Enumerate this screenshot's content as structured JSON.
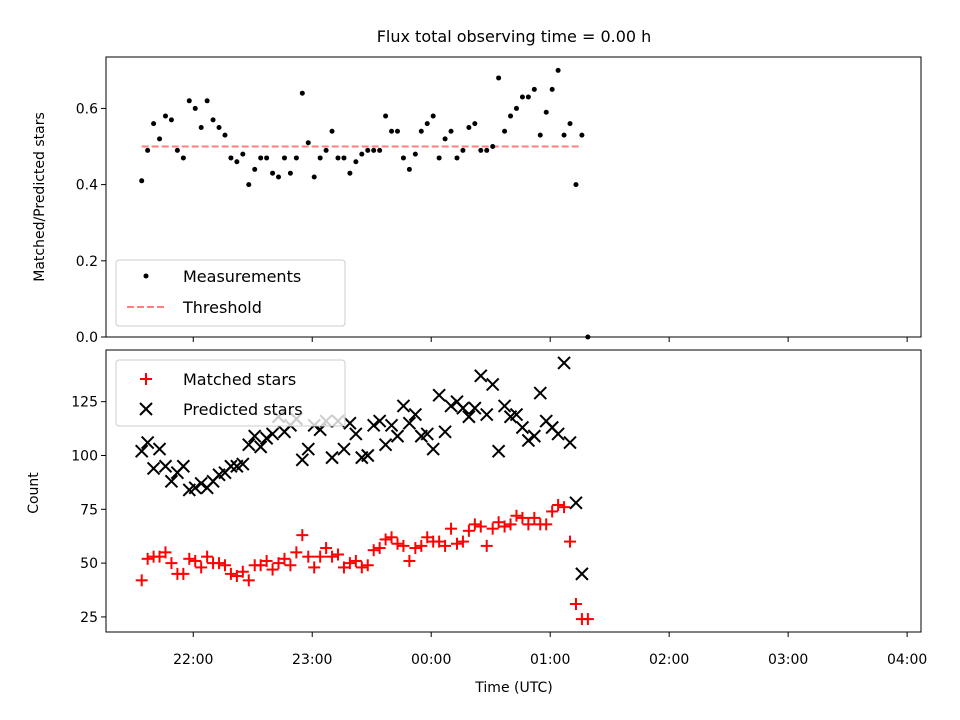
{
  "chart_data": [
    {
      "type": "scatter",
      "title": "Flux total observing time = 0.00 h",
      "xlabel": "",
      "ylabel": "Matched/Predicted stars",
      "ylim": [
        0,
        0.735
      ],
      "yticks": [
        0.0,
        0.2,
        0.4,
        0.6
      ],
      "ytick_labels": [
        "0.0",
        "0.2",
        "0.4",
        "0.6"
      ],
      "legend": "lower-left",
      "series": [
        {
          "name": "Measurements",
          "marker": "dot",
          "color": "#000000",
          "points": [
            [
              "21:34",
              0.41
            ],
            [
              "21:37",
              0.49
            ],
            [
              "21:40",
              0.56
            ],
            [
              "21:43",
              0.52
            ],
            [
              "21:46",
              0.58
            ],
            [
              "21:49",
              0.57
            ],
            [
              "21:52",
              0.49
            ],
            [
              "21:55",
              0.47
            ],
            [
              "21:58",
              0.62
            ],
            [
              "22:01",
              0.6
            ],
            [
              "22:04",
              0.55
            ],
            [
              "22:07",
              0.62
            ],
            [
              "22:10",
              0.57
            ],
            [
              "22:13",
              0.55
            ],
            [
              "22:16",
              0.53
            ],
            [
              "22:19",
              0.47
            ],
            [
              "22:22",
              0.46
            ],
            [
              "22:25",
              0.48
            ],
            [
              "22:28",
              0.4
            ],
            [
              "22:31",
              0.44
            ],
            [
              "22:34",
              0.47
            ],
            [
              "22:37",
              0.47
            ],
            [
              "22:40",
              0.43
            ],
            [
              "22:43",
              0.42
            ],
            [
              "22:46",
              0.47
            ],
            [
              "22:49",
              0.43
            ],
            [
              "22:52",
              0.47
            ],
            [
              "22:55",
              0.64
            ],
            [
              "22:58",
              0.51
            ],
            [
              "23:01",
              0.42
            ],
            [
              "23:04",
              0.47
            ],
            [
              "23:07",
              0.49
            ],
            [
              "23:10",
              0.54
            ],
            [
              "23:13",
              0.47
            ],
            [
              "23:16",
              0.47
            ],
            [
              "23:19",
              0.43
            ],
            [
              "23:22",
              0.46
            ],
            [
              "23:25",
              0.48
            ],
            [
              "23:28",
              0.49
            ],
            [
              "23:31",
              0.49
            ],
            [
              "23:34",
              0.49
            ],
            [
              "23:37",
              0.58
            ],
            [
              "23:40",
              0.54
            ],
            [
              "23:43",
              0.54
            ],
            [
              "23:46",
              0.47
            ],
            [
              "23:49",
              0.44
            ],
            [
              "23:52",
              0.48
            ],
            [
              "23:55",
              0.54
            ],
            [
              "23:58",
              0.56
            ],
            [
              "00:01",
              0.58
            ],
            [
              "00:04",
              0.47
            ],
            [
              "00:07",
              0.52
            ],
            [
              "00:10",
              0.54
            ],
            [
              "00:13",
              0.47
            ],
            [
              "00:16",
              0.49
            ],
            [
              "00:19",
              0.55
            ],
            [
              "00:22",
              0.56
            ],
            [
              "00:25",
              0.49
            ],
            [
              "00:28",
              0.49
            ],
            [
              "00:31",
              0.5
            ],
            [
              "00:34",
              0.68
            ],
            [
              "00:37",
              0.54
            ],
            [
              "00:40",
              0.58
            ],
            [
              "00:43",
              0.6
            ],
            [
              "00:46",
              0.63
            ],
            [
              "00:49",
              0.63
            ],
            [
              "00:52",
              0.65
            ],
            [
              "00:55",
              0.53
            ],
            [
              "00:58",
              0.59
            ],
            [
              "01:01",
              0.65
            ],
            [
              "01:04",
              0.7
            ],
            [
              "01:07",
              0.53
            ],
            [
              "01:10",
              0.56
            ],
            [
              "01:13",
              0.4
            ],
            [
              "01:16",
              0.53
            ],
            [
              "01:19",
              0.0
            ]
          ]
        },
        {
          "name": "Threshold",
          "marker": "dashed-line",
          "color": "#ff7f7f",
          "points": [
            [
              "21:34",
              0.5
            ],
            [
              "01:16",
              0.5
            ]
          ]
        }
      ]
    },
    {
      "type": "scatter",
      "title": "",
      "xlabel": "Time (UTC)",
      "ylabel": "Count",
      "ylim": [
        18,
        149
      ],
      "yticks": [
        25,
        50,
        75,
        100,
        125
      ],
      "ytick_labels": [
        "25",
        "50",
        "75",
        "100",
        "125"
      ],
      "xticks": [
        "22:00",
        "23:00",
        "00:00",
        "01:00",
        "02:00",
        "03:00",
        "04:00"
      ],
      "xlim": [
        "21:16",
        "04:07"
      ],
      "legend": "upper-left",
      "series": [
        {
          "name": "Matched stars",
          "marker": "plus",
          "color": "#ff0000",
          "points": [
            [
              "21:34",
              42
            ],
            [
              "21:37",
              52
            ],
            [
              "21:40",
              53
            ],
            [
              "21:43",
              53
            ],
            [
              "21:46",
              55
            ],
            [
              "21:49",
              50
            ],
            [
              "21:52",
              45
            ],
            [
              "21:55",
              45
            ],
            [
              "21:58",
              52
            ],
            [
              "22:01",
              51
            ],
            [
              "22:04",
              48
            ],
            [
              "22:07",
              53
            ],
            [
              "22:10",
              50
            ],
            [
              "22:13",
              50
            ],
            [
              "22:16",
              49
            ],
            [
              "22:19",
              45
            ],
            [
              "22:22",
              44
            ],
            [
              "22:25",
              46
            ],
            [
              "22:28",
              42
            ],
            [
              "22:31",
              49
            ],
            [
              "22:34",
              49
            ],
            [
              "22:37",
              51
            ],
            [
              "22:40",
              47
            ],
            [
              "22:43",
              50
            ],
            [
              "22:46",
              52
            ],
            [
              "22:49",
              49
            ],
            [
              "22:52",
              55
            ],
            [
              "22:55",
              63
            ],
            [
              "22:58",
              53
            ],
            [
              "23:01",
              48
            ],
            [
              "23:04",
              53
            ],
            [
              "23:07",
              57
            ],
            [
              "23:10",
              53
            ],
            [
              "23:13",
              54
            ],
            [
              "23:16",
              48
            ],
            [
              "23:19",
              50
            ],
            [
              "23:22",
              51
            ],
            [
              "23:25",
              48
            ],
            [
              "23:28",
              49
            ],
            [
              "23:31",
              56
            ],
            [
              "23:34",
              57
            ],
            [
              "23:37",
              61
            ],
            [
              "23:40",
              62
            ],
            [
              "23:43",
              59
            ],
            [
              "23:46",
              58
            ],
            [
              "23:49",
              51
            ],
            [
              "23:52",
              57
            ],
            [
              "23:55",
              58
            ],
            [
              "23:58",
              62
            ],
            [
              "00:01",
              60
            ],
            [
              "00:04",
              60
            ],
            [
              "00:07",
              58
            ],
            [
              "00:10",
              66
            ],
            [
              "00:13",
              59
            ],
            [
              "00:16",
              60
            ],
            [
              "00:19",
              65
            ],
            [
              "00:22",
              68
            ],
            [
              "00:25",
              67
            ],
            [
              "00:28",
              58
            ],
            [
              "00:31",
              66
            ],
            [
              "00:34",
              69
            ],
            [
              "00:37",
              67
            ],
            [
              "00:40",
              68
            ],
            [
              "00:43",
              72
            ],
            [
              "00:46",
              71
            ],
            [
              "00:49",
              68
            ],
            [
              "00:52",
              71
            ],
            [
              "00:55",
              68
            ],
            [
              "00:58",
              68
            ],
            [
              "01:01",
              74
            ],
            [
              "01:04",
              77
            ],
            [
              "01:07",
              76
            ],
            [
              "01:10",
              60
            ],
            [
              "01:13",
              31
            ],
            [
              "01:16",
              24
            ],
            [
              "01:19",
              24
            ]
          ]
        },
        {
          "name": "Predicted stars",
          "marker": "x",
          "color": "#000000",
          "points": [
            [
              "21:34",
              102
            ],
            [
              "21:37",
              106
            ],
            [
              "21:40",
              94
            ],
            [
              "21:43",
              103
            ],
            [
              "21:46",
              95
            ],
            [
              "21:49",
              88
            ],
            [
              "21:52",
              92
            ],
            [
              "21:55",
              95
            ],
            [
              "21:58",
              84
            ],
            [
              "22:01",
              85
            ],
            [
              "22:04",
              87
            ],
            [
              "22:07",
              85
            ],
            [
              "22:10",
              88
            ],
            [
              "22:13",
              91
            ],
            [
              "22:16",
              92
            ],
            [
              "22:19",
              95
            ],
            [
              "22:22",
              95
            ],
            [
              "22:25",
              96
            ],
            [
              "22:28",
              105
            ],
            [
              "22:31",
              109
            ],
            [
              "22:34",
              104
            ],
            [
              "22:37",
              108
            ],
            [
              "22:40",
              110
            ],
            [
              "22:43",
              118
            ],
            [
              "22:46",
              111
            ],
            [
              "22:49",
              114
            ],
            [
              "22:52",
              117
            ],
            [
              "22:55",
              98
            ],
            [
              "22:58",
              103
            ],
            [
              "23:01",
              114
            ],
            [
              "23:04",
              112
            ],
            [
              "23:07",
              116
            ],
            [
              "23:10",
              99
            ],
            [
              "23:13",
              116
            ],
            [
              "23:16",
              103
            ],
            [
              "23:19",
              115
            ],
            [
              "23:22",
              110
            ],
            [
              "23:25",
              99
            ],
            [
              "23:28",
              100
            ],
            [
              "23:31",
              114
            ],
            [
              "23:34",
              116
            ],
            [
              "23:37",
              105
            ],
            [
              "23:40",
              114
            ],
            [
              "23:43",
              109
            ],
            [
              "23:46",
              123
            ],
            [
              "23:49",
              115
            ],
            [
              "23:52",
              119
            ],
            [
              "23:55",
              109
            ],
            [
              "23:58",
              110
            ],
            [
              "00:01",
              103
            ],
            [
              "00:04",
              128
            ],
            [
              "00:07",
              111
            ],
            [
              "00:10",
              123
            ],
            [
              "00:13",
              125
            ],
            [
              "00:16",
              122
            ],
            [
              "00:19",
              118
            ],
            [
              "00:22",
              122
            ],
            [
              "00:25",
              137
            ],
            [
              "00:28",
              119
            ],
            [
              "00:31",
              133
            ],
            [
              "00:34",
              102
            ],
            [
              "00:37",
              123
            ],
            [
              "00:40",
              118
            ],
            [
              "00:43",
              119
            ],
            [
              "00:46",
              113
            ],
            [
              "00:49",
              107
            ],
            [
              "00:52",
              109
            ],
            [
              "00:55",
              129
            ],
            [
              "00:58",
              116
            ],
            [
              "01:01",
              113
            ],
            [
              "01:04",
              110
            ],
            [
              "01:07",
              143
            ],
            [
              "01:10",
              106
            ],
            [
              "01:13",
              78
            ],
            [
              "01:16",
              45
            ]
          ]
        }
      ]
    }
  ]
}
